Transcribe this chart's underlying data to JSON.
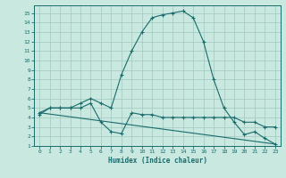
{
  "title": "",
  "xlabel": "Humidex (Indice chaleur)",
  "ylabel": "",
  "bg_color": "#c8e8e0",
  "grid_color": "#a0c8c0",
  "line_color": "#1a6b6b",
  "spine_color": "#1a6b6b",
  "xlim": [
    -0.5,
    23.5
  ],
  "ylim": [
    1,
    15.8
  ],
  "xticks": [
    0,
    1,
    2,
    3,
    4,
    5,
    6,
    7,
    8,
    9,
    10,
    11,
    12,
    13,
    14,
    15,
    16,
    17,
    18,
    19,
    20,
    21,
    22,
    23
  ],
  "yticks": [
    1,
    2,
    3,
    4,
    5,
    6,
    7,
    8,
    9,
    10,
    11,
    12,
    13,
    14,
    15
  ],
  "series1_x": [
    0,
    1,
    2,
    3,
    4,
    5,
    6,
    7,
    8,
    9,
    10,
    11,
    12,
    13,
    14,
    15,
    16,
    17,
    18,
    19,
    20,
    21,
    22,
    23
  ],
  "series1_y": [
    4.3,
    5.0,
    5.0,
    5.0,
    5.5,
    6.0,
    5.5,
    5.0,
    8.5,
    11.0,
    13.0,
    14.5,
    14.8,
    15.0,
    15.2,
    14.5,
    12.0,
    8.0,
    5.0,
    3.5,
    2.2,
    2.5,
    1.8,
    1.2
  ],
  "series2_x": [
    0,
    1,
    2,
    3,
    4,
    5,
    6,
    7,
    8,
    9,
    10,
    11,
    12,
    13,
    14,
    15,
    16,
    17,
    18,
    19,
    20,
    21,
    22,
    23
  ],
  "series2_y": [
    4.5,
    5.0,
    5.0,
    5.0,
    5.0,
    5.5,
    3.5,
    2.5,
    2.3,
    4.5,
    4.3,
    4.3,
    4.0,
    4.0,
    4.0,
    4.0,
    4.0,
    4.0,
    4.0,
    4.0,
    3.5,
    3.5,
    3.0,
    3.0
  ],
  "series3_x": [
    0,
    23
  ],
  "series3_y": [
    4.5,
    1.2
  ]
}
